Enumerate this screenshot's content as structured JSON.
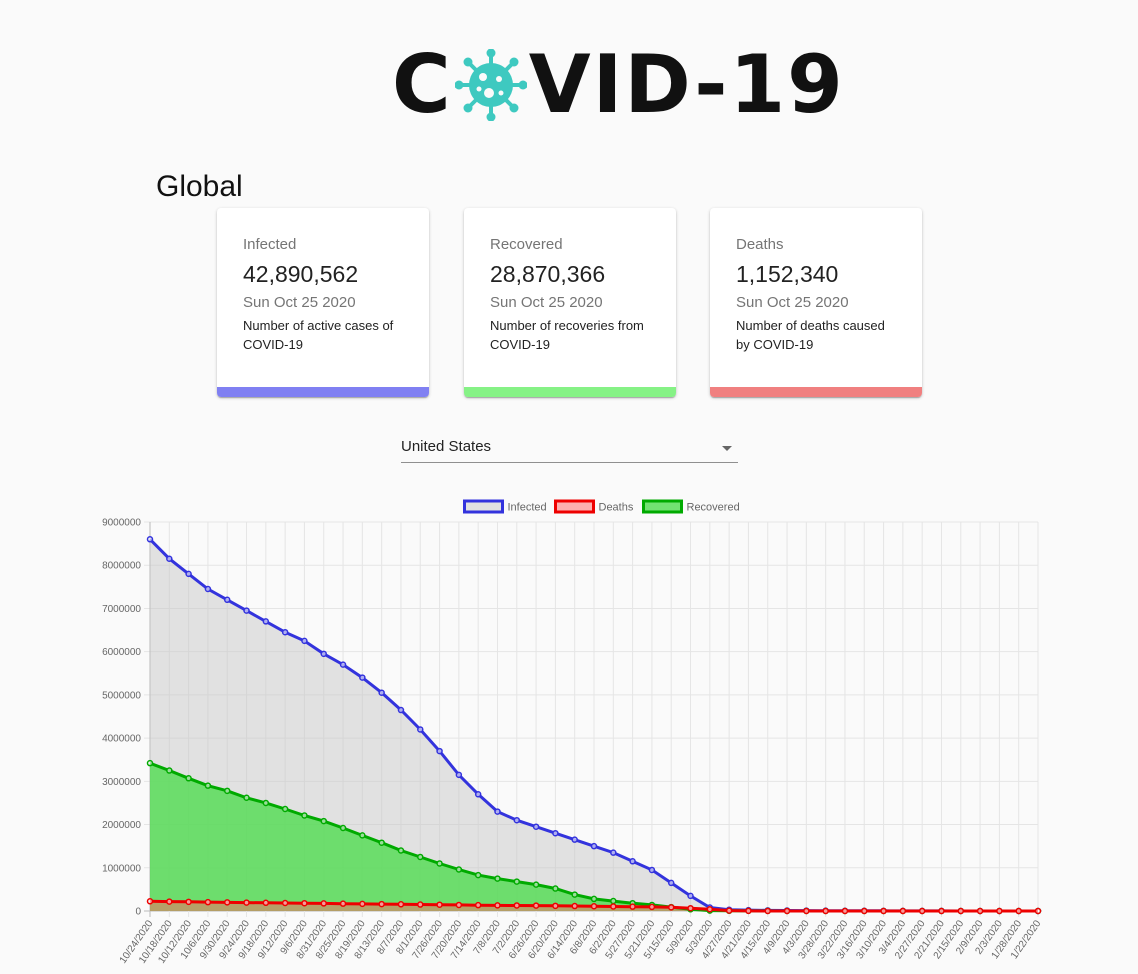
{
  "header": {
    "logo_left": "C",
    "logo_right": "VID-19",
    "logo_virus_icon": "virus-icon"
  },
  "scope_title": "Global",
  "cards": [
    {
      "label": "Infected",
      "value": "42,890,562",
      "date": "Sun Oct 25 2020",
      "desc": "Number of active cases of COVID-19",
      "color": "#8080f2"
    },
    {
      "label": "Recovered",
      "value": "28,870,366",
      "date": "Sun Oct 25 2020",
      "desc": "Number of recoveries from COVID-19",
      "color": "#86f286"
    },
    {
      "label": "Deaths",
      "value": "1,152,340",
      "date": "Sun Oct 25 2020",
      "desc": "Number of deaths caused by COVID-19",
      "color": "#f08080"
    }
  ],
  "country_select": {
    "value": "United States",
    "icon": "chevron-down-icon"
  },
  "chart_data": {
    "type": "line",
    "legend_position": "top",
    "grid": true,
    "ylim": [
      0,
      9000000
    ],
    "yticks": [
      "9000000",
      "8000000",
      "7000000",
      "6000000",
      "5000000",
      "4000000",
      "3000000",
      "2000000",
      "1000000",
      "0"
    ],
    "xtick_labels": [
      "10/24/2020",
      "10/18/2020",
      "10/12/2020",
      "10/6/2020",
      "9/30/2020",
      "9/24/2020",
      "9/18/2020",
      "9/12/2020",
      "9/6/2020",
      "8/31/2020",
      "8/25/2020",
      "8/19/2020",
      "8/13/2020",
      "8/7/2020",
      "8/1/2020",
      "7/26/2020",
      "7/20/2020",
      "7/14/2020",
      "7/8/2020",
      "7/2/2020",
      "6/26/2020",
      "6/20/2020",
      "6/14/2020",
      "6/8/2020",
      "6/2/2020",
      "5/27/2020",
      "5/21/2020",
      "5/15/2020",
      "5/9/2020",
      "5/3/2020",
      "4/27/2020",
      "4/21/2020",
      "4/15/2020",
      "4/9/2020",
      "4/3/2020",
      "3/28/2020",
      "3/22/2020",
      "3/16/2020",
      "3/10/2020",
      "3/4/2020",
      "2/27/2020",
      "2/21/2020",
      "2/15/2020",
      "2/9/2020",
      "2/3/2020",
      "1/28/2020",
      "1/22/2020"
    ],
    "x": [
      "10/24/2020",
      "10/18/2020",
      "10/12/2020",
      "10/6/2020",
      "9/30/2020",
      "9/24/2020",
      "9/18/2020",
      "9/12/2020",
      "9/6/2020",
      "8/31/2020",
      "8/25/2020",
      "8/19/2020",
      "8/13/2020",
      "8/7/2020",
      "8/1/2020",
      "7/26/2020",
      "7/20/2020",
      "7/14/2020",
      "7/8/2020",
      "7/2/2020",
      "6/26/2020",
      "6/20/2020",
      "6/14/2020",
      "6/8/2020",
      "6/2/2020",
      "5/27/2020",
      "5/21/2020",
      "5/15/2020",
      "5/9/2020",
      "5/3/2020",
      "4/27/2020",
      "4/21/2020",
      "4/15/2020",
      "4/9/2020",
      "4/3/2020",
      "3/28/2020",
      "3/22/2020",
      "3/16/2020",
      "3/10/2020",
      "3/4/2020",
      "2/27/2020",
      "2/21/2020",
      "2/15/2020",
      "2/9/2020",
      "2/3/2020",
      "1/28/2020",
      "1/22/2020"
    ],
    "series": [
      {
        "name": "Infected",
        "color": "#3333dd",
        "fill": "rgba(200,200,200,0.5)",
        "values": [
          8600000,
          8150000,
          7800000,
          7450000,
          7200000,
          6950000,
          6700000,
          6450000,
          6250000,
          5950000,
          5700000,
          5400000,
          5050000,
          4650000,
          4200000,
          3700000,
          3150000,
          2700000,
          2300000,
          2100000,
          1950000,
          1800000,
          1650000,
          1500000,
          1350000,
          1150000,
          950000,
          650000,
          350000,
          80000,
          30000,
          20000,
          15000,
          12000,
          10000,
          8000,
          6000,
          5000,
          4000,
          3000,
          2000,
          1500,
          1000,
          500,
          200,
          50,
          10
        ]
      },
      {
        "name": "Deaths",
        "color": "#ee0000",
        "fill": "rgba(255,100,100,0.5)",
        "values": [
          225000,
          218000,
          212000,
          205000,
          200000,
          195000,
          190000,
          185000,
          180000,
          175000,
          170000,
          165000,
          160000,
          155000,
          150000,
          145000,
          140000,
          135000,
          130000,
          128000,
          125000,
          120000,
          115000,
          110000,
          105000,
          100000,
          95000,
          85000,
          65000,
          40000,
          10000,
          3000,
          1000,
          500,
          200,
          100,
          50,
          20,
          10,
          5,
          3,
          2,
          1,
          0,
          0,
          0,
          0
        ]
      },
      {
        "name": "Recovered",
        "color": "#00aa00",
        "fill": "rgba(80,220,80,0.8)",
        "values": [
          3420000,
          3250000,
          3070000,
          2900000,
          2780000,
          2620000,
          2500000,
          2360000,
          2210000,
          2080000,
          1920000,
          1750000,
          1580000,
          1400000,
          1250000,
          1100000,
          960000,
          830000,
          750000,
          680000,
          610000,
          520000,
          380000,
          280000,
          230000,
          180000,
          140000,
          90000,
          40000,
          10000,
          5000,
          3000,
          2000,
          1000,
          500,
          200,
          100,
          50,
          20,
          10,
          5,
          2,
          1,
          0,
          0,
          0,
          0
        ]
      }
    ]
  }
}
